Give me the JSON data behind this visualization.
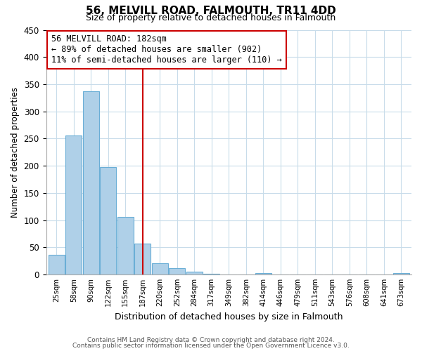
{
  "title": "56, MELVILL ROAD, FALMOUTH, TR11 4DD",
  "subtitle": "Size of property relative to detached houses in Falmouth",
  "xlabel": "Distribution of detached houses by size in Falmouth",
  "ylabel": "Number of detached properties",
  "bin_labels": [
    "25sqm",
    "58sqm",
    "90sqm",
    "122sqm",
    "155sqm",
    "187sqm",
    "220sqm",
    "252sqm",
    "284sqm",
    "317sqm",
    "349sqm",
    "382sqm",
    "414sqm",
    "446sqm",
    "479sqm",
    "511sqm",
    "543sqm",
    "576sqm",
    "608sqm",
    "641sqm",
    "673sqm"
  ],
  "bar_heights": [
    36,
    256,
    337,
    197,
    106,
    57,
    21,
    11,
    5,
    1,
    0,
    0,
    2,
    0,
    0,
    0,
    0,
    0,
    0,
    0,
    2
  ],
  "bar_color": "#afd0e8",
  "bar_edge_color": "#6aaed6",
  "vline_x_index": 5,
  "vline_color": "#cc0000",
  "annotation_text": "56 MELVILL ROAD: 182sqm\n← 89% of detached houses are smaller (902)\n11% of semi-detached houses are larger (110) →",
  "annotation_box_color": "#ffffff",
  "annotation_box_edge": "#cc0000",
  "ylim": [
    0,
    450
  ],
  "yticks": [
    0,
    50,
    100,
    150,
    200,
    250,
    300,
    350,
    400,
    450
  ],
  "footer_line1": "Contains HM Land Registry data © Crown copyright and database right 2024.",
  "footer_line2": "Contains public sector information licensed under the Open Government Licence v3.0.",
  "bg_color": "#ffffff",
  "grid_color": "#c8dcea"
}
